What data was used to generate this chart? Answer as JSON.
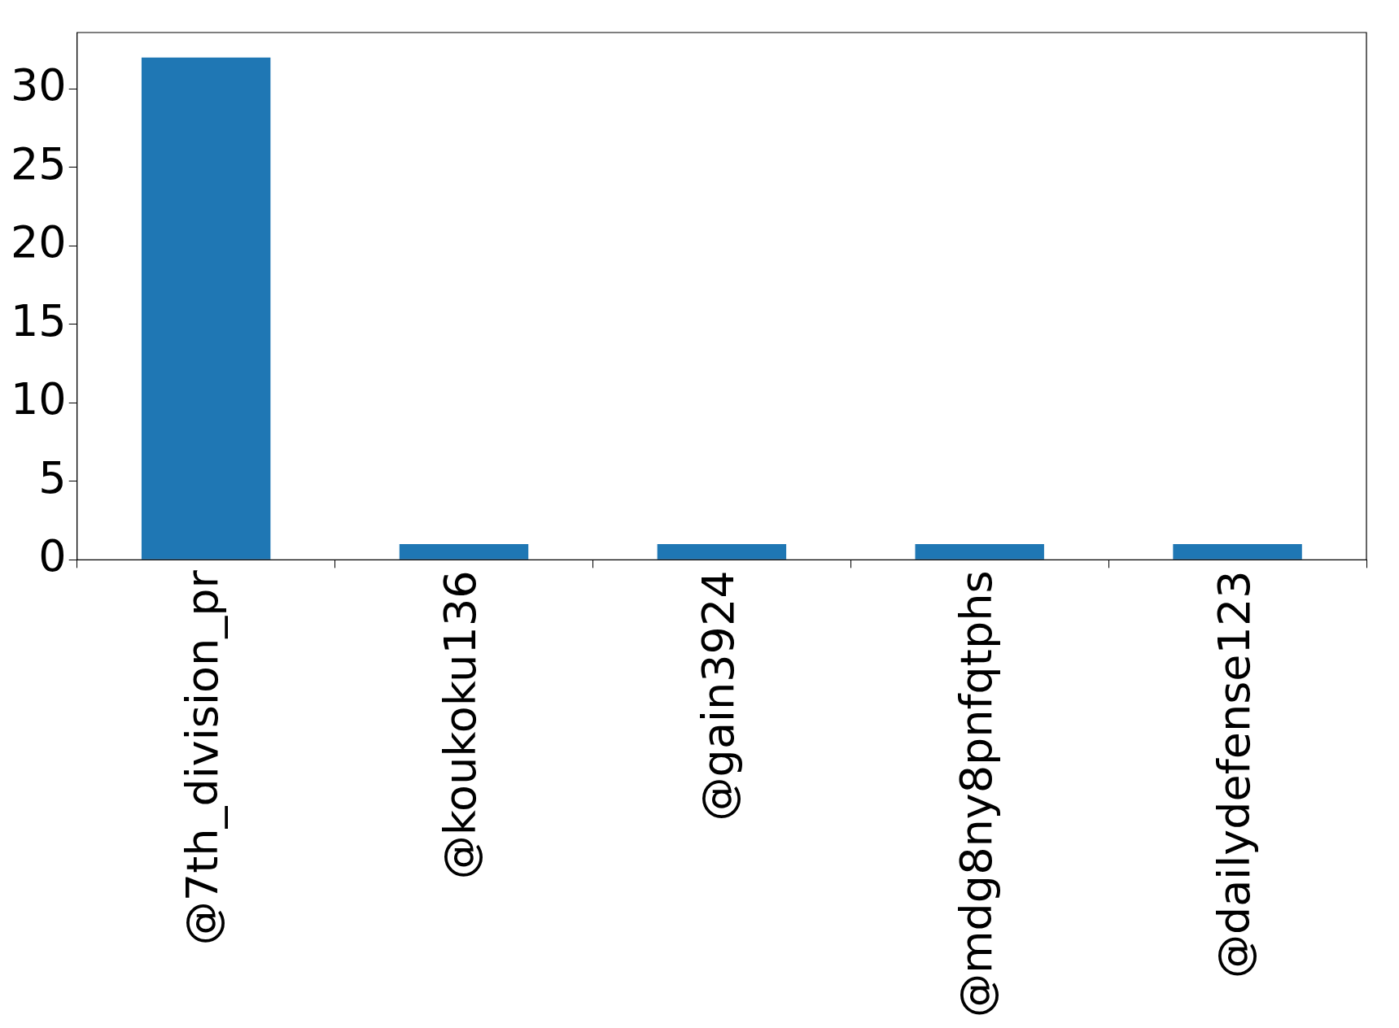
{
  "chart_data": {
    "type": "bar",
    "categories": [
      "@7th_division_pr",
      "@koukoku136",
      "@gain3924",
      "@mdg8ny8pnfqtphs",
      "@dailydefense123"
    ],
    "values": [
      32,
      1,
      1,
      1,
      1
    ],
    "color": "#1f77b4",
    "ylim": [
      0,
      33.6
    ],
    "yticks": [
      0,
      5,
      10,
      15,
      20,
      25,
      30
    ],
    "grid": false,
    "legend": false
  }
}
